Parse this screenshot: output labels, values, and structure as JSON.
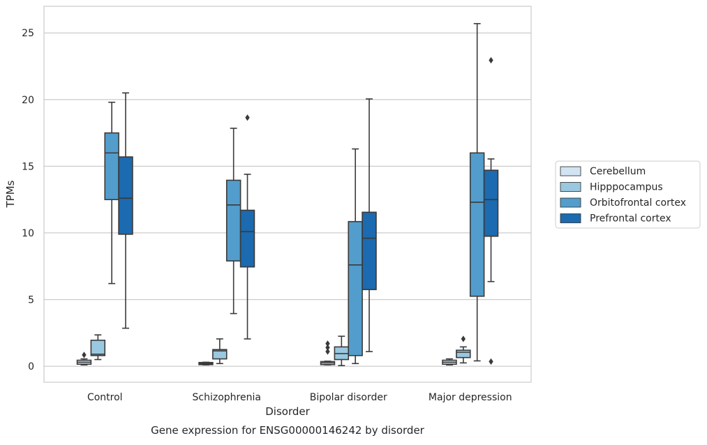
{
  "chart_data": {
    "type": "box",
    "caption": "Gene expression for ENSG00000146242 by disorder",
    "xlabel": "Disorder",
    "ylabel": "TPMs",
    "categories": [
      "Control",
      "Schizophrenia",
      "Bipolar disorder",
      "Major depression"
    ],
    "ylim": [
      -1.2,
      27
    ],
    "yticks": [
      0,
      5,
      10,
      15,
      20,
      25
    ],
    "grid": "horizontal",
    "legend_position": "right",
    "series": [
      {
        "name": "Cerebellum",
        "color": "#d2e3f3",
        "boxes": [
          {
            "whisker_low": 0.1,
            "q1": 0.15,
            "median": 0.3,
            "q3": 0.45,
            "whisker_high": 0.55,
            "outliers": [
              0.85
            ]
          },
          {
            "whisker_low": 0.1,
            "q1": 0.12,
            "median": 0.2,
            "q3": 0.28,
            "whisker_high": 0.3,
            "outliers": []
          },
          {
            "whisker_low": 0.1,
            "q1": 0.12,
            "median": 0.25,
            "q3": 0.35,
            "whisker_high": 0.38,
            "outliers": [
              1.1,
              1.4,
              1.7
            ]
          },
          {
            "whisker_low": 0.1,
            "q1": 0.15,
            "median": 0.3,
            "q3": 0.45,
            "whisker_high": 0.55,
            "outliers": []
          }
        ]
      },
      {
        "name": "Hipppocampus",
        "color": "#9ac8e0",
        "boxes": [
          {
            "whisker_low": 0.5,
            "q1": 0.8,
            "median": 0.9,
            "q3": 1.95,
            "whisker_high": 2.35,
            "outliers": []
          },
          {
            "whisker_low": 0.2,
            "q1": 0.55,
            "median": 1.15,
            "q3": 1.25,
            "whisker_high": 2.05,
            "outliers": []
          },
          {
            "whisker_low": 0.05,
            "q1": 0.5,
            "median": 0.95,
            "q3": 1.45,
            "whisker_high": 2.25,
            "outliers": []
          },
          {
            "whisker_low": 0.25,
            "q1": 0.65,
            "median": 1.05,
            "q3": 1.2,
            "whisker_high": 1.45,
            "outliers": [
              2.05
            ]
          }
        ]
      },
      {
        "name": "Orbitofrontal cortex",
        "color": "#529dcc",
        "boxes": [
          {
            "whisker_low": 6.2,
            "q1": 12.5,
            "median": 16.0,
            "q3": 17.5,
            "whisker_high": 19.8,
            "outliers": []
          },
          {
            "whisker_low": 3.95,
            "q1": 7.9,
            "median": 12.1,
            "q3": 13.95,
            "whisker_high": 17.85,
            "outliers": []
          },
          {
            "whisker_low": 0.2,
            "q1": 0.8,
            "median": 7.6,
            "q3": 10.85,
            "whisker_high": 16.3,
            "outliers": []
          },
          {
            "whisker_low": 0.4,
            "q1": 5.25,
            "median": 12.3,
            "q3": 16.0,
            "whisker_high": 25.7,
            "outliers": []
          }
        ]
      },
      {
        "name": "Prefrontal cortex",
        "color": "#1c6aaf",
        "boxes": [
          {
            "whisker_low": 2.85,
            "q1": 9.9,
            "median": 12.6,
            "q3": 15.7,
            "whisker_high": 20.5,
            "outliers": []
          },
          {
            "whisker_low": 2.05,
            "q1": 7.45,
            "median": 10.1,
            "q3": 11.7,
            "whisker_high": 14.4,
            "outliers": [
              18.65
            ]
          },
          {
            "whisker_low": 1.1,
            "q1": 5.75,
            "median": 9.6,
            "q3": 11.55,
            "whisker_high": 20.05,
            "outliers": []
          },
          {
            "whisker_low": 6.35,
            "q1": 9.75,
            "median": 12.5,
            "q3": 14.7,
            "whisker_high": 15.55,
            "outliers": [
              22.95,
              0.35
            ]
          }
        ]
      }
    ]
  }
}
